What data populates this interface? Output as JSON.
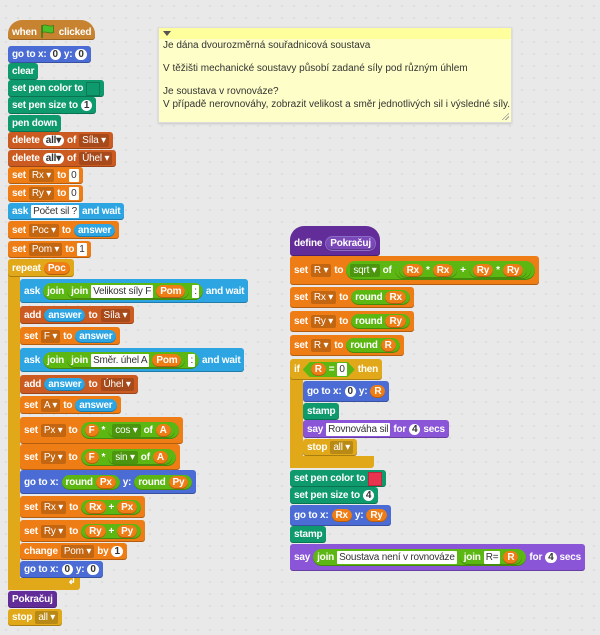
{
  "colors": {
    "event": "#c88330",
    "motion": "#4a6cd4",
    "pen": "#0e9a6c",
    "list": "#cc5b22",
    "variable": "#ee7d16",
    "sensing": "#2ca5e2",
    "operators": "#5cb712",
    "control": "#e1a91a",
    "custom": "#632d99",
    "looks": "#8a55d7",
    "pen_color_left": "#0e9a6c",
    "pen_color_right": "#e8344e"
  },
  "comment": {
    "lines": [
      "Je dána dvourozměrná souřadnicová soustava",
      "",
      "V těžišti mechanické soustavy působí zadané síly pod různým úhlem",
      "",
      "Je soustava v rovnováze?",
      "V případě nerovnováhy, zobrazit velikost a směr jednotlivých sil i výsledné síly."
    ]
  },
  "scripts": {
    "left": [
      {
        "cat": "event",
        "hat": true,
        "parts": [
          {
            "k": "t",
            "s": "when"
          },
          {
            "k": "flag"
          },
          {
            "k": "t",
            "s": "clicked"
          }
        ]
      },
      {
        "cat": "motion",
        "parts": [
          {
            "k": "t",
            "s": "go to x:"
          },
          {
            "k": "n",
            "s": "0"
          },
          {
            "k": "t",
            "s": "y:"
          },
          {
            "k": "n",
            "s": "0"
          }
        ]
      },
      {
        "cat": "pen",
        "parts": [
          {
            "k": "t",
            "s": "clear"
          }
        ]
      },
      {
        "cat": "pen",
        "parts": [
          {
            "k": "t",
            "s": "set pen color to"
          },
          {
            "k": "c",
            "color": "pen_color_left"
          }
        ]
      },
      {
        "cat": "pen",
        "parts": [
          {
            "k": "t",
            "s": "set pen size to"
          },
          {
            "k": "n",
            "s": "1"
          }
        ]
      },
      {
        "cat": "pen",
        "parts": [
          {
            "k": "t",
            "s": "pen down"
          }
        ]
      },
      {
        "cat": "list",
        "parts": [
          {
            "k": "t",
            "s": "delete"
          },
          {
            "k": "dw",
            "s": "all▾"
          },
          {
            "k": "t",
            "s": "of"
          },
          {
            "k": "d",
            "s": "Síla ▾"
          }
        ]
      },
      {
        "cat": "list",
        "parts": [
          {
            "k": "t",
            "s": "delete"
          },
          {
            "k": "dw",
            "s": "all▾"
          },
          {
            "k": "t",
            "s": "of"
          },
          {
            "k": "d",
            "s": "Úhel ▾"
          }
        ]
      },
      {
        "cat": "variable",
        "parts": [
          {
            "k": "t",
            "s": "set"
          },
          {
            "k": "d",
            "s": "Rx ▾"
          },
          {
            "k": "t",
            "s": "to"
          },
          {
            "k": "i",
            "s": "0"
          }
        ]
      },
      {
        "cat": "variable",
        "parts": [
          {
            "k": "t",
            "s": "set"
          },
          {
            "k": "d",
            "s": "Ry ▾"
          },
          {
            "k": "t",
            "s": "to"
          },
          {
            "k": "i",
            "s": "0"
          }
        ]
      },
      {
        "cat": "sensing",
        "parts": [
          {
            "k": "t",
            "s": "ask"
          },
          {
            "k": "i",
            "s": "Počet sil ?"
          },
          {
            "k": "t",
            "s": "and wait"
          }
        ]
      },
      {
        "cat": "variable",
        "parts": [
          {
            "k": "t",
            "s": "set"
          },
          {
            "k": "d",
            "s": "Poc ▾"
          },
          {
            "k": "t",
            "s": "to"
          },
          {
            "k": "a",
            "s": "answer"
          }
        ]
      },
      {
        "cat": "variable",
        "parts": [
          {
            "k": "t",
            "s": "set"
          },
          {
            "k": "d",
            "s": "Pom ▾"
          },
          {
            "k": "t",
            "s": "to"
          },
          {
            "k": "i",
            "s": "1"
          }
        ]
      },
      {
        "cat": "control",
        "parts": [
          {
            "k": "t",
            "s": "repeat"
          },
          {
            "k": "v",
            "s": "Poc"
          }
        ]
      },
      {
        "cat": "sensing",
        "parts": [
          {
            "k": "t",
            "s": "ask"
          },
          {
            "k": "r",
            "parts": [
              {
                "k": "t",
                "s": "join"
              },
              {
                "k": "r",
                "parts": [
                  {
                    "k": "t",
                    "s": "join"
                  },
                  {
                    "k": "i",
                    "s": "Velikost síly F"
                  },
                  {
                    "k": "v",
                    "s": "Pom"
                  }
                ]
              },
              {
                "k": "i",
                "s": ":"
              }
            ]
          },
          {
            "k": "t",
            "s": "and wait"
          }
        ]
      },
      {
        "cat": "list",
        "parts": [
          {
            "k": "t",
            "s": "add"
          },
          {
            "k": "a",
            "s": "answer"
          },
          {
            "k": "t",
            "s": "to"
          },
          {
            "k": "d",
            "s": "Síla ▾"
          }
        ]
      },
      {
        "cat": "variable",
        "parts": [
          {
            "k": "t",
            "s": "set"
          },
          {
            "k": "d",
            "s": "F ▾"
          },
          {
            "k": "t",
            "s": "to"
          },
          {
            "k": "a",
            "s": "answer"
          }
        ]
      },
      {
        "cat": "sensing",
        "parts": [
          {
            "k": "t",
            "s": "ask"
          },
          {
            "k": "r",
            "parts": [
              {
                "k": "t",
                "s": "join"
              },
              {
                "k": "r",
                "parts": [
                  {
                    "k": "t",
                    "s": "join"
                  },
                  {
                    "k": "i",
                    "s": "Směr. úhel A"
                  },
                  {
                    "k": "v",
                    "s": "Pom"
                  }
                ]
              },
              {
                "k": "i",
                "s": ":"
              }
            ]
          },
          {
            "k": "t",
            "s": "and wait"
          }
        ]
      },
      {
        "cat": "list",
        "parts": [
          {
            "k": "t",
            "s": "add"
          },
          {
            "k": "a",
            "s": "answer"
          },
          {
            "k": "t",
            "s": "to"
          },
          {
            "k": "d",
            "s": "Úhel ▾"
          }
        ]
      },
      {
        "cat": "variable",
        "parts": [
          {
            "k": "t",
            "s": "set"
          },
          {
            "k": "d",
            "s": "A ▾"
          },
          {
            "k": "t",
            "s": "to"
          },
          {
            "k": "a",
            "s": "answer"
          }
        ]
      },
      {
        "cat": "variable",
        "parts": [
          {
            "k": "t",
            "s": "set"
          },
          {
            "k": "d",
            "s": "Px ▾"
          },
          {
            "k": "t",
            "s": "to"
          },
          {
            "k": "r",
            "parts": [
              {
                "k": "v",
                "s": "F"
              },
              {
                "k": "t",
                "s": "*"
              },
              {
                "k": "r",
                "parts": [
                  {
                    "k": "d",
                    "s": "cos ▾"
                  },
                  {
                    "k": "t",
                    "s": "of"
                  },
                  {
                    "k": "v",
                    "s": "A"
                  }
                ]
              }
            ]
          }
        ]
      },
      {
        "cat": "variable",
        "parts": [
          {
            "k": "t",
            "s": "set"
          },
          {
            "k": "d",
            "s": "Py ▾"
          },
          {
            "k": "t",
            "s": "to"
          },
          {
            "k": "r",
            "parts": [
              {
                "k": "v",
                "s": "F"
              },
              {
                "k": "t",
                "s": "*"
              },
              {
                "k": "r",
                "parts": [
                  {
                    "k": "d",
                    "s": "sin ▾"
                  },
                  {
                    "k": "t",
                    "s": "of"
                  },
                  {
                    "k": "v",
                    "s": "A"
                  }
                ]
              }
            ]
          }
        ]
      },
      {
        "cat": "motion",
        "parts": [
          {
            "k": "t",
            "s": "go to x:"
          },
          {
            "k": "r",
            "parts": [
              {
                "k": "t",
                "s": "round"
              },
              {
                "k": "v",
                "s": "Px"
              }
            ]
          },
          {
            "k": "t",
            "s": "y:"
          },
          {
            "k": "r",
            "parts": [
              {
                "k": "t",
                "s": "round"
              },
              {
                "k": "v",
                "s": "Py"
              }
            ]
          }
        ]
      },
      {
        "cat": "variable",
        "parts": [
          {
            "k": "t",
            "s": "set"
          },
          {
            "k": "d",
            "s": "Rx ▾"
          },
          {
            "k": "t",
            "s": "to"
          },
          {
            "k": "r",
            "parts": [
              {
                "k": "v",
                "s": "Rx"
              },
              {
                "k": "t",
                "s": "+"
              },
              {
                "k": "v",
                "s": "Px"
              }
            ]
          }
        ]
      },
      {
        "cat": "variable",
        "parts": [
          {
            "k": "t",
            "s": "set"
          },
          {
            "k": "d",
            "s": "Ry ▾"
          },
          {
            "k": "t",
            "s": "to"
          },
          {
            "k": "r",
            "parts": [
              {
                "k": "v",
                "s": "Ry"
              },
              {
                "k": "t",
                "s": "+"
              },
              {
                "k": "v",
                "s": "Py"
              }
            ]
          }
        ]
      },
      {
        "cat": "variable",
        "parts": [
          {
            "k": "t",
            "s": "change"
          },
          {
            "k": "d",
            "s": "Pom ▾"
          },
          {
            "k": "t",
            "s": "by"
          },
          {
            "k": "n",
            "s": "1"
          }
        ]
      },
      {
        "cat": "motion",
        "parts": [
          {
            "k": "t",
            "s": "go to x:"
          },
          {
            "k": "n",
            "s": "0"
          },
          {
            "k": "t",
            "s": "y:"
          },
          {
            "k": "n",
            "s": "0"
          }
        ]
      },
      {
        "cat": "custom",
        "parts": [
          {
            "k": "t",
            "s": "Pokračuj"
          }
        ]
      },
      {
        "cat": "control",
        "parts": [
          {
            "k": "t",
            "s": "stop"
          },
          {
            "k": "d",
            "s": "all ▾"
          }
        ]
      }
    ],
    "right": [
      {
        "cat": "custom",
        "hat": true,
        "parts": [
          {
            "k": "t",
            "s": "define"
          },
          {
            "k": "p",
            "s": "Pokračuj"
          }
        ]
      },
      {
        "cat": "variable",
        "parts": [
          {
            "k": "t",
            "s": "set"
          },
          {
            "k": "d",
            "s": "R ▾"
          },
          {
            "k": "t",
            "s": "to"
          },
          {
            "k": "r",
            "parts": [
              {
                "k": "d",
                "s": "sqrt ▾"
              },
              {
                "k": "t",
                "s": "of"
              },
              {
                "k": "r",
                "parts": [
                  {
                    "k": "r",
                    "parts": [
                      {
                        "k": "v",
                        "s": "Rx"
                      },
                      {
                        "k": "t",
                        "s": "*"
                      },
                      {
                        "k": "v",
                        "s": "Rx"
                      }
                    ]
                  },
                  {
                    "k": "t",
                    "s": "+"
                  },
                  {
                    "k": "r",
                    "parts": [
                      {
                        "k": "v",
                        "s": "Ry"
                      },
                      {
                        "k": "t",
                        "s": "*"
                      },
                      {
                        "k": "v",
                        "s": "Ry"
                      }
                    ]
                  }
                ]
              }
            ]
          }
        ]
      },
      {
        "cat": "variable",
        "parts": [
          {
            "k": "t",
            "s": "set"
          },
          {
            "k": "d",
            "s": "Rx ▾"
          },
          {
            "k": "t",
            "s": "to"
          },
          {
            "k": "r",
            "parts": [
              {
                "k": "t",
                "s": "round"
              },
              {
                "k": "v",
                "s": "Rx"
              }
            ]
          }
        ]
      },
      {
        "cat": "variable",
        "parts": [
          {
            "k": "t",
            "s": "set"
          },
          {
            "k": "d",
            "s": "Ry ▾"
          },
          {
            "k": "t",
            "s": "to"
          },
          {
            "k": "r",
            "parts": [
              {
                "k": "t",
                "s": "round"
              },
              {
                "k": "v",
                "s": "Ry"
              }
            ]
          }
        ]
      },
      {
        "cat": "variable",
        "parts": [
          {
            "k": "t",
            "s": "set"
          },
          {
            "k": "d",
            "s": "R ▾"
          },
          {
            "k": "t",
            "s": "to"
          },
          {
            "k": "r",
            "parts": [
              {
                "k": "t",
                "s": "round"
              },
              {
                "k": "v",
                "s": "R"
              }
            ]
          }
        ]
      },
      {
        "cat": "control",
        "parts": [
          {
            "k": "t",
            "s": "if"
          },
          {
            "k": "b",
            "parts": [
              {
                "k": "v",
                "s": "R"
              },
              {
                "k": "t",
                "s": "="
              },
              {
                "k": "i",
                "s": "0"
              }
            ]
          },
          {
            "k": "t",
            "s": "then"
          }
        ]
      },
      {
        "cat": "motion",
        "parts": [
          {
            "k": "t",
            "s": "go to x:"
          },
          {
            "k": "n",
            "s": "0"
          },
          {
            "k": "t",
            "s": "y:"
          },
          {
            "k": "v",
            "s": "R"
          }
        ]
      },
      {
        "cat": "pen",
        "parts": [
          {
            "k": "t",
            "s": "stamp"
          }
        ]
      },
      {
        "cat": "looks",
        "parts": [
          {
            "k": "t",
            "s": "say"
          },
          {
            "k": "i",
            "s": "Rovnováha sil"
          },
          {
            "k": "t",
            "s": "for"
          },
          {
            "k": "n",
            "s": "4"
          },
          {
            "k": "t",
            "s": "secs"
          }
        ]
      },
      {
        "cat": "control",
        "parts": [
          {
            "k": "t",
            "s": "stop"
          },
          {
            "k": "d",
            "s": "all ▾"
          }
        ]
      },
      {
        "cat": "pen",
        "parts": [
          {
            "k": "t",
            "s": "set pen color to"
          },
          {
            "k": "c",
            "color": "pen_color_right"
          }
        ]
      },
      {
        "cat": "pen",
        "parts": [
          {
            "k": "t",
            "s": "set pen size to"
          },
          {
            "k": "n",
            "s": "4"
          }
        ]
      },
      {
        "cat": "motion",
        "parts": [
          {
            "k": "t",
            "s": "go to x:"
          },
          {
            "k": "v",
            "s": "Rx"
          },
          {
            "k": "t",
            "s": "y:"
          },
          {
            "k": "v",
            "s": "Ry"
          }
        ]
      },
      {
        "cat": "pen",
        "parts": [
          {
            "k": "t",
            "s": "stamp"
          }
        ]
      },
      {
        "cat": "looks",
        "parts": [
          {
            "k": "t",
            "s": "say"
          },
          {
            "k": "r",
            "parts": [
              {
                "k": "t",
                "s": "join"
              },
              {
                "k": "i",
                "s": "Soustava není v rovnováze"
              },
              {
                "k": "r",
                "parts": [
                  {
                    "k": "t",
                    "s": "join"
                  },
                  {
                    "k": "i",
                    "s": "R="
                  },
                  {
                    "k": "v",
                    "s": "R"
                  }
                ]
              }
            ]
          },
          {
            "k": "t",
            "s": "for"
          },
          {
            "k": "n",
            "s": "4"
          },
          {
            "k": "t",
            "s": "secs"
          }
        ]
      }
    ]
  }
}
